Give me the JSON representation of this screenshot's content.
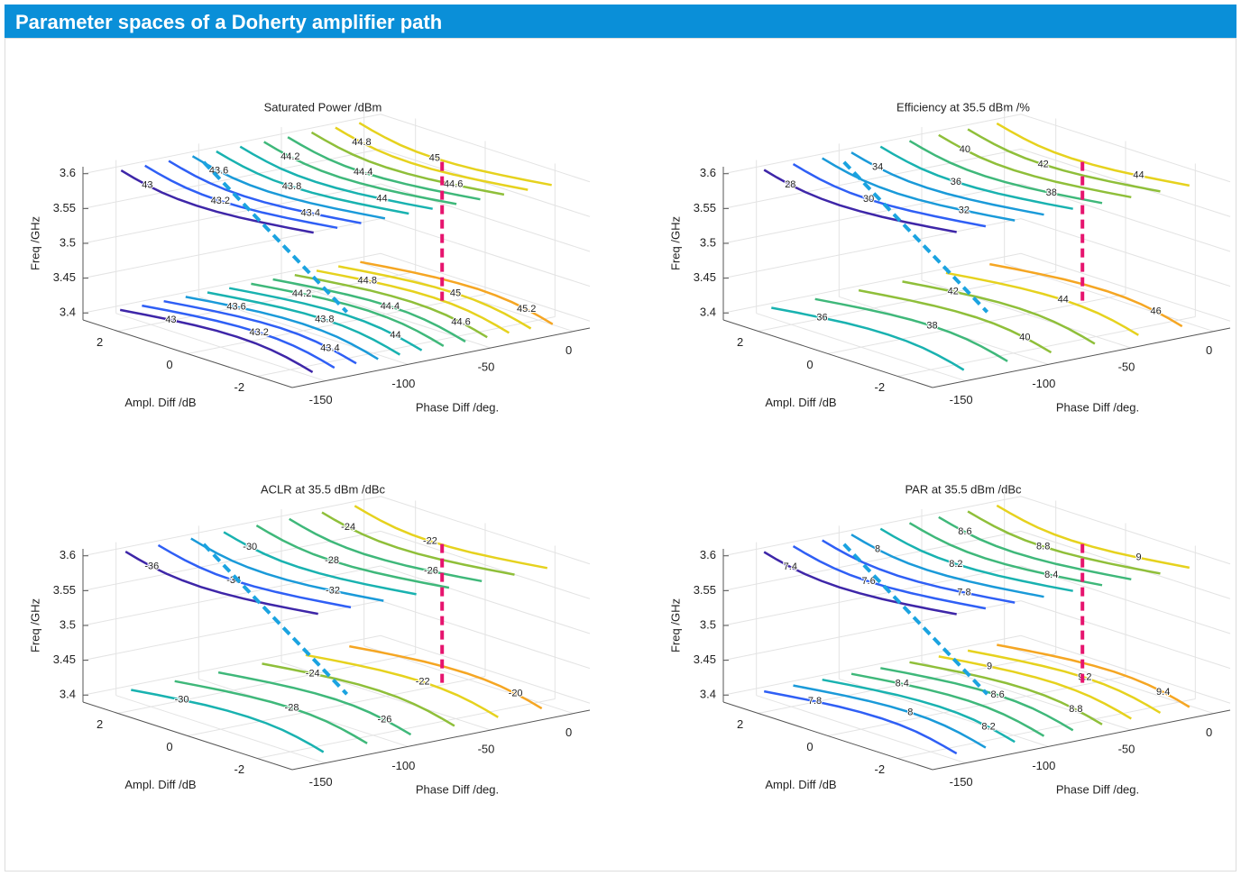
{
  "header": {
    "title": "Parameter spaces of a Doherty amplifier path"
  },
  "chart_data": [
    {
      "type": "contour3d",
      "title": "Saturated Power /dBm",
      "xlabel": "Phase Diff /deg.",
      "ylabel": "Ampl. Diff /dB",
      "zlabel": "Freq /GHz",
      "xlim": [
        -170,
        10
      ],
      "xticks": [
        -150,
        -100,
        -50,
        0
      ],
      "ylim": [
        -3,
        3
      ],
      "yticks": [
        -2,
        0,
        2
      ],
      "zlim": [
        3.39,
        3.61
      ],
      "zticks": [
        3.4,
        3.45,
        3.5,
        3.55,
        3.6
      ],
      "colormap": [
        "#3e26a8",
        "#2f5ff5",
        "#1a9ad9",
        "#19b2b0",
        "#3fb87a",
        "#8fbf3a",
        "#e6d21e",
        "#f5a623"
      ],
      "slices": [
        {
          "z": 3.6,
          "levels": [
            43,
            43.2,
            43.4,
            43.6,
            43.8,
            44,
            44.2,
            44.4,
            44.6,
            44.8,
            45
          ]
        },
        {
          "z": 3.4,
          "levels": [
            43,
            43.2,
            43.4,
            43.6,
            43.8,
            44,
            44.2,
            44.4,
            44.6,
            44.8,
            45,
            45.2
          ]
        }
      ]
    },
    {
      "type": "contour3d",
      "title": "Efficiency at 35.5 dBm /%",
      "xlabel": "Phase Diff /deg.",
      "ylabel": "Ampl. Diff /dB",
      "zlabel": "Freq /GHz",
      "xlim": [
        -170,
        10
      ],
      "xticks": [
        -150,
        -100,
        -50,
        0
      ],
      "ylim": [
        -3,
        3
      ],
      "yticks": [
        -2,
        0,
        2
      ],
      "zlim": [
        3.39,
        3.61
      ],
      "zticks": [
        3.4,
        3.45,
        3.5,
        3.55,
        3.6
      ],
      "colormap": [
        "#3e26a8",
        "#2f5ff5",
        "#1a9ad9",
        "#19b2b0",
        "#3fb87a",
        "#8fbf3a",
        "#e6d21e",
        "#f5a623"
      ],
      "slices": [
        {
          "z": 3.6,
          "levels": [
            28,
            30,
            32,
            34,
            36,
            38,
            40,
            42,
            44
          ]
        },
        {
          "z": 3.4,
          "levels": [
            36,
            38,
            40,
            42,
            44,
            46
          ]
        }
      ]
    },
    {
      "type": "contour3d",
      "title": "ACLR at 35.5 dBm /dBc",
      "xlabel": "Phase Diff /deg.",
      "ylabel": "Ampl. Diff /dB",
      "zlabel": "Freq /GHz",
      "xlim": [
        -170,
        10
      ],
      "xticks": [
        -150,
        -100,
        -50,
        0
      ],
      "ylim": [
        -3,
        3
      ],
      "yticks": [
        -2,
        0,
        2
      ],
      "zlim": [
        3.39,
        3.61
      ],
      "zticks": [
        3.4,
        3.45,
        3.5,
        3.55,
        3.6
      ],
      "colormap": [
        "#3e26a8",
        "#2f5ff5",
        "#1a9ad9",
        "#19b2b0",
        "#3fb87a",
        "#8fbf3a",
        "#e6d21e",
        "#f5a623"
      ],
      "slices": [
        {
          "z": 3.6,
          "levels": [
            -36,
            -34,
            -32,
            -30,
            -28,
            -26,
            -24,
            -22
          ]
        },
        {
          "z": 3.4,
          "levels": [
            -30,
            -28,
            -26,
            -24,
            -22,
            -20
          ]
        }
      ]
    },
    {
      "type": "contour3d",
      "title": "PAR at 35.5 dBm /dBc",
      "xlabel": "Phase Diff /deg.",
      "ylabel": "Ampl. Diff /dB",
      "zlabel": "Freq /GHz",
      "xlim": [
        -170,
        10
      ],
      "xticks": [
        -150,
        -100,
        -50,
        0
      ],
      "ylim": [
        -3,
        3
      ],
      "yticks": [
        -2,
        0,
        2
      ],
      "zlim": [
        3.39,
        3.61
      ],
      "zticks": [
        3.4,
        3.45,
        3.5,
        3.55,
        3.6
      ],
      "colormap": [
        "#3e26a8",
        "#2f5ff5",
        "#1a9ad9",
        "#19b2b0",
        "#3fb87a",
        "#8fbf3a",
        "#e6d21e",
        "#f5a623"
      ],
      "slices": [
        {
          "z": 3.6,
          "levels": [
            7.4,
            7.6,
            7.8,
            8,
            8.2,
            8.4,
            8.6,
            8.8,
            9
          ]
        },
        {
          "z": 3.4,
          "levels": [
            7.8,
            8,
            8.2,
            8.4,
            8.6,
            8.8,
            9,
            9.2,
            9.4
          ]
        }
      ]
    }
  ]
}
